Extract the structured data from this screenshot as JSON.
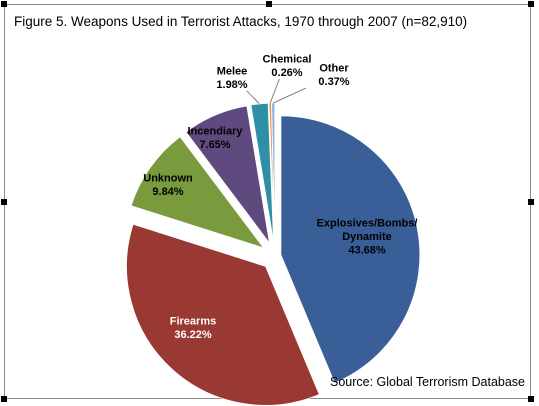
{
  "chart_data": {
    "type": "pie",
    "title": "Figure 5. Weapons Used in Terrorist Attacks, 1970 through 2007 (n=82,910)",
    "source": "Source: Global Terrorism Database",
    "exploded": true,
    "slices": [
      {
        "label": "Explosives/Bombs/ Dynamite",
        "lines": [
          "Explosives/Bombs/",
          "Dynamite"
        ],
        "value": 43.68,
        "value_label": "43.68%",
        "color": "#3a5f98",
        "label_color": "#000000"
      },
      {
        "label": "Firearms",
        "lines": [
          "Firearms"
        ],
        "value": 36.22,
        "value_label": "36.22%",
        "color": "#9a3833",
        "label_color": "#ffffff"
      },
      {
        "label": "Unknown",
        "lines": [
          "Unknown"
        ],
        "value": 9.84,
        "value_label": "9.84%",
        "color": "#7a9a3e",
        "label_color": "#000000"
      },
      {
        "label": "Incendiary",
        "lines": [
          "Incendiary"
        ],
        "value": 7.65,
        "value_label": "7.65%",
        "color": "#5e4a7f",
        "label_color": "#000000"
      },
      {
        "label": "Melee",
        "lines": [
          "Melee"
        ],
        "value": 1.98,
        "value_label": "1.98%",
        "color": "#2e8fa6",
        "label_color": "#000000"
      },
      {
        "label": "Chemical",
        "lines": [
          "Chemical"
        ],
        "value": 0.26,
        "value_label": "0.26%",
        "color": "#e88a3c",
        "label_color": "#000000"
      },
      {
        "label": "Other",
        "lines": [
          "Other"
        ],
        "value": 0.37,
        "value_label": "0.37%",
        "color": "#8fb0d8",
        "label_color": "#000000"
      }
    ]
  }
}
